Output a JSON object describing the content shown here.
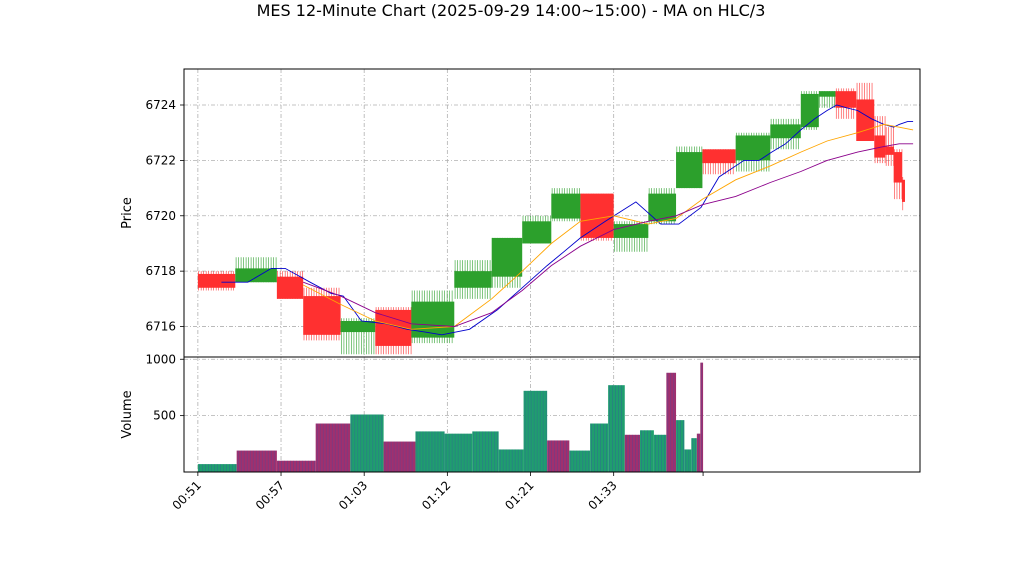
{
  "title": "MES 12-Minute Chart (2025-09-29 14:00~15:00) - MA on HLC/3",
  "colors": {
    "up": "#2ca02c",
    "down": "#ff3030",
    "ma_fast": "#0000cc",
    "ma_mid": "#ffa500",
    "ma_slow": "#8b008b",
    "grid": "#b0b0b0",
    "vol_up": "#1f9e6e",
    "vol_down": "#a0306e"
  },
  "chart_data": [
    {
      "type": "candlestick",
      "ylabel": "Price",
      "ylim": [
        6714.9,
        6725.3
      ],
      "yticks": [
        6716,
        6718,
        6720,
        6722,
        6724
      ],
      "grid": true,
      "xlim": [
        50.0,
        103.1
      ],
      "x": [
        51.0,
        53.7,
        56.7,
        58.6,
        61.3,
        63.8,
        66.4,
        69.5,
        72.2,
        74.4,
        76.5,
        78.6,
        81.0,
        83.5,
        85.5,
        87.4,
        89.8,
        92.3,
        94.5,
        95.8,
        97.0,
        98.5,
        99.8,
        100.6,
        101.2,
        101.8
      ],
      "candles": [
        {
          "o": 6717.9,
          "h": 6718.0,
          "l": 6717.3,
          "c": 6717.4
        },
        {
          "o": 6717.6,
          "h": 6718.5,
          "l": 6717.6,
          "c": 6718.1
        },
        {
          "o": 6717.8,
          "h": 6718.0,
          "l": 6717.0,
          "c": 6717.0
        },
        {
          "o": 6717.1,
          "h": 6717.4,
          "l": 6715.5,
          "c": 6715.7
        },
        {
          "o": 6715.8,
          "h": 6716.3,
          "l": 6715.0,
          "c": 6716.2
        },
        {
          "o": 6716.6,
          "h": 6716.7,
          "l": 6715.0,
          "c": 6715.3
        },
        {
          "o": 6715.6,
          "h": 6717.3,
          "l": 6715.4,
          "c": 6716.9
        },
        {
          "o": 6717.4,
          "h": 6718.4,
          "l": 6717.0,
          "c": 6718.0
        },
        {
          "o": 6717.8,
          "h": 6719.2,
          "l": 6717.4,
          "c": 6719.2
        },
        {
          "o": 6719.0,
          "h": 6720.0,
          "l": 6719.0,
          "c": 6719.8
        },
        {
          "o": 6719.9,
          "h": 6721.0,
          "l": 6719.8,
          "c": 6720.8
        },
        {
          "o": 6720.8,
          "h": 6720.8,
          "l": 6719.1,
          "c": 6719.2
        },
        {
          "o": 6719.2,
          "h": 6719.8,
          "l": 6718.7,
          "c": 6719.7
        },
        {
          "o": 6719.8,
          "h": 6721.0,
          "l": 6719.7,
          "c": 6720.8
        },
        {
          "o": 6721.0,
          "h": 6722.5,
          "l": 6721.0,
          "c": 6722.3
        },
        {
          "o": 6722.4,
          "h": 6722.4,
          "l": 6721.5,
          "c": 6721.9
        },
        {
          "o": 6722.0,
          "h": 6723.0,
          "l": 6721.6,
          "c": 6722.9
        },
        {
          "o": 6722.8,
          "h": 6723.5,
          "l": 6722.4,
          "c": 6723.3
        },
        {
          "o": 6723.2,
          "h": 6724.5,
          "l": 6723.1,
          "c": 6724.4
        },
        {
          "o": 6724.3,
          "h": 6724.5,
          "l": 6723.9,
          "c": 6724.5
        },
        {
          "o": 6724.5,
          "h": 6724.6,
          "l": 6723.5,
          "c": 6723.9
        },
        {
          "o": 6724.2,
          "h": 6724.8,
          "l": 6722.7,
          "c": 6722.7
        },
        {
          "o": 6722.9,
          "h": 6723.6,
          "l": 6721.9,
          "c": 6722.1
        },
        {
          "o": 6722.5,
          "h": 6723.2,
          "l": 6721.8,
          "c": 6722.2
        },
        {
          "o": 6722.3,
          "h": 6722.4,
          "l": 6720.6,
          "c": 6721.2
        },
        {
          "o": 6721.3,
          "h": 6721.4,
          "l": 6720.2,
          "c": 6720.5
        }
      ],
      "moving_averages": [
        {
          "color_key": "ma_fast",
          "x": [
            52.7,
            54.6,
            56.3,
            57.3,
            59.1,
            60.6,
            61.5,
            62.8,
            64.6,
            66.1,
            67.4,
            68.6,
            70.6,
            72.6,
            74.4,
            76.2,
            77.4,
            78.6,
            80.4,
            82.6,
            84.4,
            85.7,
            87.3,
            88.6,
            90.4,
            91.5,
            92.4,
            93.4,
            94.5,
            95.5,
            96.4,
            97.1,
            97.8,
            98.6,
            99.6,
            100.5,
            101.2,
            101.6,
            102.2,
            102.6
          ],
          "y": [
            6717.6,
            6717.6,
            6718.1,
            6718.1,
            6717.6,
            6717.2,
            6717.1,
            6716.2,
            6716.1,
            6715.9,
            6715.8,
            6715.7,
            6715.9,
            6716.6,
            6717.4,
            6718.2,
            6718.7,
            6719.2,
            6719.8,
            6720.5,
            6719.7,
            6719.7,
            6720.3,
            6721.4,
            6722.0,
            6722.0,
            6722.3,
            6722.6,
            6723.1,
            6723.5,
            6723.8,
            6724.0,
            6723.9,
            6723.8,
            6723.5,
            6723.3,
            6723.2,
            6723.3,
            6723.4,
            6723.4
          ]
        },
        {
          "color_key": "ma_mid",
          "x": [
            58.6,
            61.3,
            63.8,
            66.4,
            69.5,
            72.2,
            74.4,
            76.5,
            78.6,
            81.0,
            83.5,
            85.5,
            87.4,
            89.8,
            92.3,
            94.5,
            96.4,
            98.6,
            100.5,
            101.6,
            102.6
          ],
          "y": [
            6717.5,
            6716.8,
            6716.2,
            6715.9,
            6716.0,
            6717.0,
            6718.0,
            6719.0,
            6719.8,
            6720.0,
            6719.7,
            6719.9,
            6720.6,
            6721.3,
            6721.8,
            6722.3,
            6722.7,
            6723.0,
            6723.3,
            6723.2,
            6723.1
          ]
        },
        {
          "color_key": "ma_slow",
          "x": [
            58.6,
            61.3,
            63.8,
            66.4,
            69.5,
            72.2,
            74.4,
            76.5,
            78.6,
            81.0,
            83.5,
            85.5,
            87.4,
            89.8,
            92.3,
            94.5,
            96.4,
            98.6,
            100.5,
            101.6,
            102.6
          ],
          "y": [
            6717.6,
            6717.1,
            6716.5,
            6716.1,
            6716.0,
            6716.5,
            6717.3,
            6718.2,
            6718.9,
            6719.5,
            6719.8,
            6720.0,
            6720.4,
            6720.7,
            6721.2,
            6721.6,
            6722.0,
            6722.3,
            6722.5,
            6722.6,
            6722.6
          ]
        }
      ]
    },
    {
      "type": "bar",
      "ylabel": "Volume",
      "ylim": [
        0,
        1020
      ],
      "yticks": [
        500,
        1000
      ],
      "grid": true,
      "xlim": [
        50.0,
        103.1
      ],
      "xticks": [
        51,
        57,
        63,
        69,
        75,
        81
      ],
      "xticklabels": [
        "00:51",
        "00:57",
        "01:03",
        "01:12",
        "01:21",
        "01:33"
      ],
      "bars": [
        {
          "x0": 51.0,
          "x1": 53.8,
          "v": 70,
          "dir": "up"
        },
        {
          "x0": 53.8,
          "x1": 56.7,
          "v": 190,
          "dir": "down"
        },
        {
          "x0": 56.7,
          "x1": 59.5,
          "v": 100,
          "dir": "down"
        },
        {
          "x0": 59.5,
          "x1": 62.0,
          "v": 430,
          "dir": "down"
        },
        {
          "x0": 62.0,
          "x1": 64.4,
          "v": 510,
          "dir": "up"
        },
        {
          "x0": 64.4,
          "x1": 66.7,
          "v": 270,
          "dir": "down"
        },
        {
          "x0": 66.7,
          "x1": 68.8,
          "v": 360,
          "dir": "up"
        },
        {
          "x0": 68.8,
          "x1": 70.8,
          "v": 340,
          "dir": "up"
        },
        {
          "x0": 70.8,
          "x1": 72.7,
          "v": 360,
          "dir": "up"
        },
        {
          "x0": 72.7,
          "x1": 74.5,
          "v": 200,
          "dir": "up"
        },
        {
          "x0": 74.5,
          "x1": 76.2,
          "v": 720,
          "dir": "up"
        },
        {
          "x0": 76.2,
          "x1": 77.8,
          "v": 280,
          "dir": "down"
        },
        {
          "x0": 77.8,
          "x1": 79.3,
          "v": 190,
          "dir": "up"
        },
        {
          "x0": 79.3,
          "x1": 80.6,
          "v": 430,
          "dir": "up"
        },
        {
          "x0": 80.6,
          "x1": 81.8,
          "v": 770,
          "dir": "up"
        },
        {
          "x0": 81.8,
          "x1": 82.9,
          "v": 330,
          "dir": "down"
        },
        {
          "x0": 82.9,
          "x1": 83.9,
          "v": 370,
          "dir": "up"
        },
        {
          "x0": 83.9,
          "x1": 84.8,
          "v": 330,
          "dir": "up"
        },
        {
          "x0": 84.8,
          "x1": 85.5,
          "v": 880,
          "dir": "down"
        },
        {
          "x0": 85.5,
          "x1": 86.1,
          "v": 460,
          "dir": "up"
        },
        {
          "x0": 86.1,
          "x1": 86.6,
          "v": 200,
          "dir": "up"
        },
        {
          "x0": 86.6,
          "x1": 87.0,
          "v": 300,
          "dir": "up"
        },
        {
          "x0": 87.0,
          "x1": 87.25,
          "v": 340,
          "dir": "down"
        },
        {
          "x0": 87.25,
          "x1": 87.45,
          "v": 970,
          "dir": "down"
        }
      ]
    }
  ]
}
